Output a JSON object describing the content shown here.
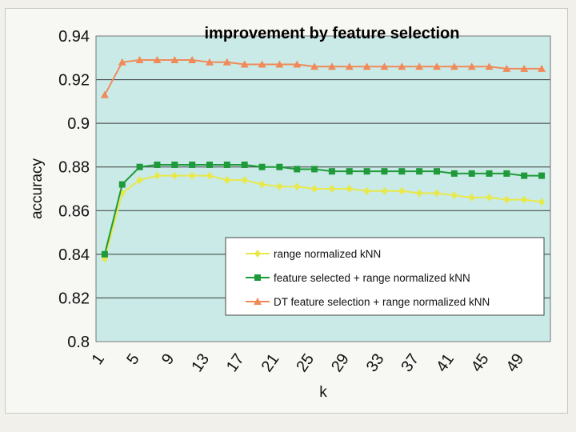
{
  "chart_data": {
    "type": "line",
    "title": "improvement by feature selection",
    "xlabel": "k",
    "ylabel": "accuracy",
    "ylim": [
      0.8,
      0.94
    ],
    "yticks": [
      "0.94",
      "0.92",
      "0.9",
      "0.88",
      "0.86",
      "0.84",
      "0.82",
      "0.8"
    ],
    "xtick_labels": [
      "1",
      "5",
      "9",
      "13",
      "17",
      "21",
      "25",
      "29",
      "33",
      "37",
      "41",
      "45",
      "49"
    ],
    "x": [
      1,
      3,
      5,
      7,
      9,
      11,
      13,
      15,
      17,
      19,
      21,
      23,
      25,
      27,
      29,
      31,
      33,
      35,
      37,
      39,
      41,
      43,
      45,
      47,
      49,
      51
    ],
    "grid": true,
    "legend_position": "lower-right",
    "background_color": "#c9eae6",
    "series": [
      {
        "name": "range normalized kNN",
        "color": "#e8e84a",
        "marker": "diamond",
        "values": [
          0.838,
          0.868,
          0.874,
          0.876,
          0.876,
          0.876,
          0.876,
          0.874,
          0.874,
          0.872,
          0.871,
          0.871,
          0.87,
          0.87,
          0.87,
          0.869,
          0.869,
          0.869,
          0.868,
          0.868,
          0.867,
          0.866,
          0.866,
          0.865,
          0.865,
          0.864
        ]
      },
      {
        "name": "feature selected + range normalized kNN",
        "color": "#1f9a3a",
        "marker": "square",
        "values": [
          0.84,
          0.872,
          0.88,
          0.881,
          0.881,
          0.881,
          0.881,
          0.881,
          0.881,
          0.88,
          0.88,
          0.879,
          0.879,
          0.878,
          0.878,
          0.878,
          0.878,
          0.878,
          0.878,
          0.878,
          0.877,
          0.877,
          0.877,
          0.877,
          0.876,
          0.876
        ]
      },
      {
        "name": "DT feature selection + range normalized kNN",
        "color": "#f08a5a",
        "marker": "triangle",
        "values": [
          0.913,
          0.928,
          0.929,
          0.929,
          0.929,
          0.929,
          0.928,
          0.928,
          0.927,
          0.927,
          0.927,
          0.927,
          0.926,
          0.926,
          0.926,
          0.926,
          0.926,
          0.926,
          0.926,
          0.926,
          0.926,
          0.926,
          0.926,
          0.925,
          0.925,
          0.925
        ]
      }
    ]
  }
}
